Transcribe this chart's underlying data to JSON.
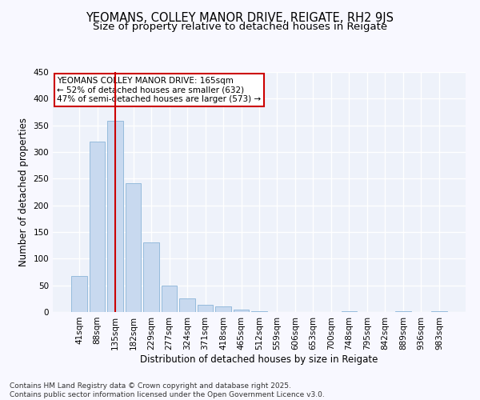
{
  "title_line1": "YEOMANS, COLLEY MANOR DRIVE, REIGATE, RH2 9JS",
  "title_line2": "Size of property relative to detached houses in Reigate",
  "xlabel": "Distribution of detached houses by size in Reigate",
  "ylabel": "Number of detached properties",
  "bar_color": "#c8d9ef",
  "bar_edge_color": "#8ab4d8",
  "categories": [
    "41sqm",
    "88sqm",
    "135sqm",
    "182sqm",
    "229sqm",
    "277sqm",
    "324sqm",
    "371sqm",
    "418sqm",
    "465sqm",
    "512sqm",
    "559sqm",
    "606sqm",
    "653sqm",
    "700sqm",
    "748sqm",
    "795sqm",
    "842sqm",
    "889sqm",
    "936sqm",
    "983sqm"
  ],
  "values": [
    67,
    320,
    358,
    241,
    130,
    49,
    26,
    14,
    10,
    4,
    1,
    0,
    0,
    0,
    0,
    1,
    0,
    0,
    2,
    0,
    2
  ],
  "vline_x": 2,
  "vline_color": "#cc0000",
  "annotation_text": "YEOMANS COLLEY MANOR DRIVE: 165sqm\n← 52% of detached houses are smaller (632)\n47% of semi-detached houses are larger (573) →",
  "annotation_box_color": "#ffffff",
  "annotation_box_edge_color": "#cc0000",
  "ylim": [
    0,
    450
  ],
  "yticks": [
    0,
    50,
    100,
    150,
    200,
    250,
    300,
    350,
    400,
    450
  ],
  "bg_color": "#eef2fa",
  "fig_bg_color": "#f8f8ff",
  "footer_text": "Contains HM Land Registry data © Crown copyright and database right 2025.\nContains public sector information licensed under the Open Government Licence v3.0.",
  "title_fontsize": 10.5,
  "subtitle_fontsize": 9.5,
  "axis_label_fontsize": 8.5,
  "tick_fontsize": 7.5,
  "annotation_fontsize": 7.5,
  "footer_fontsize": 6.5
}
